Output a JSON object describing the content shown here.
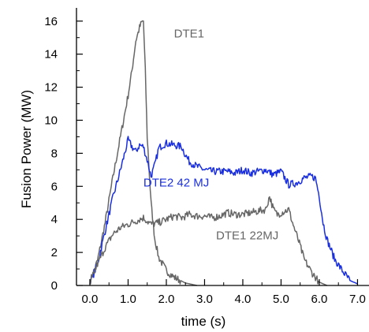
{
  "chart_data": {
    "type": "line",
    "xlabel": "time (s)",
    "ylabel": "Fusion Power (MW)",
    "xlim": [
      -0.35,
      7.3
    ],
    "ylim": [
      0,
      16.8
    ],
    "x_ticks": [
      0,
      1,
      2,
      3,
      4,
      5,
      6,
      7
    ],
    "x_tick_labels": [
      "0.0",
      "1.0",
      "2.0",
      "3.0",
      "4.0",
      "5.0",
      "6.0",
      "7.0"
    ],
    "y_ticks": [
      0,
      2,
      4,
      6,
      8,
      10,
      12,
      14,
      16
    ],
    "y_tick_labels": [
      "0",
      "2",
      "4",
      "6",
      "8",
      "10",
      "12",
      "14",
      "16"
    ],
    "grid": false,
    "series": [
      {
        "name": "DTE1",
        "color": "#666666",
        "label_at": [
          2.2,
          15.0
        ],
        "x": [
          0.0,
          0.2,
          0.4,
          0.6,
          0.8,
          1.0,
          1.1,
          1.2,
          1.3,
          1.35,
          1.4,
          1.45,
          1.5,
          1.6,
          1.7,
          1.8,
          2.0,
          2.2,
          2.5,
          2.8
        ],
        "y": [
          0.2,
          1.5,
          3.8,
          6.5,
          9.0,
          11.5,
          13.0,
          14.8,
          15.6,
          15.9,
          16.0,
          13.0,
          9.0,
          5.0,
          2.8,
          1.7,
          0.9,
          0.5,
          0.15,
          0.0
        ]
      },
      {
        "name": "DTE2 42 MJ",
        "color": "#1a2fe0",
        "label_at": [
          1.4,
          6.0
        ],
        "x": [
          0.0,
          0.2,
          0.4,
          0.6,
          0.8,
          0.9,
          1.0,
          1.1,
          1.2,
          1.3,
          1.4,
          1.5,
          1.6,
          1.7,
          1.8,
          1.9,
          2.0,
          2.2,
          2.4,
          2.5,
          2.6,
          2.8,
          3.0,
          3.2,
          3.4,
          3.6,
          3.8,
          4.0,
          4.2,
          4.4,
          4.6,
          4.8,
          5.0,
          5.2,
          5.4,
          5.6,
          5.8,
          5.9,
          6.0,
          6.1,
          6.2,
          6.4,
          6.6,
          6.8,
          7.0
        ],
        "y": [
          0.1,
          1.3,
          3.3,
          5.3,
          7.0,
          7.9,
          8.8,
          8.4,
          8.1,
          8.5,
          8.4,
          7.6,
          6.6,
          7.3,
          8.3,
          8.5,
          8.6,
          8.5,
          8.4,
          7.9,
          7.5,
          7.2,
          7.0,
          6.9,
          6.9,
          6.9,
          6.8,
          7.0,
          6.8,
          6.9,
          7.0,
          6.7,
          6.9,
          6.1,
          6.2,
          6.5,
          6.6,
          6.5,
          5.4,
          3.8,
          2.8,
          1.6,
          0.9,
          0.3,
          0.1
        ]
      },
      {
        "name": "DTE1  22MJ",
        "color": "#666666",
        "label_at": [
          3.3,
          2.8
        ],
        "x": [
          0.0,
          0.2,
          0.4,
          0.6,
          0.8,
          1.0,
          1.2,
          1.4,
          1.6,
          1.8,
          2.0,
          2.2,
          2.4,
          2.6,
          2.8,
          3.0,
          3.2,
          3.4,
          3.6,
          3.8,
          4.0,
          4.2,
          4.4,
          4.6,
          4.7,
          4.8,
          4.9,
          5.0,
          5.2,
          5.3,
          5.4,
          5.5,
          5.6,
          5.8,
          6.0,
          6.2
        ],
        "y": [
          0.1,
          1.3,
          2.3,
          3.1,
          3.5,
          3.7,
          3.9,
          4.1,
          3.7,
          3.8,
          4.0,
          4.2,
          4.1,
          4.3,
          4.2,
          4.2,
          4.1,
          4.2,
          4.4,
          4.3,
          4.3,
          4.4,
          4.5,
          4.6,
          5.4,
          4.6,
          4.3,
          4.4,
          4.6,
          3.8,
          3.1,
          2.4,
          1.6,
          0.8,
          0.2,
          0.0
        ]
      }
    ]
  }
}
